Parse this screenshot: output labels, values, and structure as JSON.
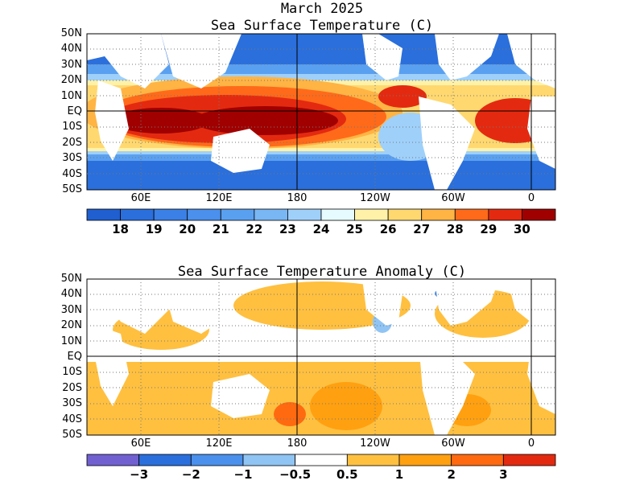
{
  "header": {
    "month_title": "March 2025"
  },
  "sst_panel": {
    "title": "Sea Surface Temperature (C)",
    "lat_labels": [
      "50N",
      "40N",
      "30N",
      "20N",
      "10N",
      "EQ",
      "10S",
      "20S",
      "30S",
      "40S",
      "50S"
    ],
    "lon_labels": [
      "60E",
      "120E",
      "180",
      "120W",
      "60W",
      "0"
    ],
    "colorbar": {
      "labels": [
        "18",
        "19",
        "20",
        "21",
        "22",
        "23",
        "24",
        "25",
        "26",
        "27",
        "28",
        "29",
        "30"
      ],
      "colors": [
        "#1f5fd0",
        "#2a6fdc",
        "#3a80e6",
        "#4a90ec",
        "#5aa0f0",
        "#78b6f4",
        "#9fd0fa",
        "#e6fbff",
        "#fff2a8",
        "#ffd870",
        "#ffb444",
        "#ff6a1a",
        "#e32a10",
        "#a00000"
      ]
    }
  },
  "anomaly_panel": {
    "title": "Sea Surface Temperature Anomaly (C)",
    "lat_labels": [
      "50N",
      "40N",
      "30N",
      "20N",
      "10N",
      "EQ",
      "10S",
      "20S",
      "30S",
      "40S",
      "50S"
    ],
    "lon_labels": [
      "60E",
      "120E",
      "180",
      "120W",
      "60W",
      "0"
    ],
    "colorbar": {
      "labels": [
        "−3",
        "−2",
        "−1",
        "−0.5",
        "0.5",
        "1",
        "2",
        "3"
      ],
      "colors": [
        "#7060d0",
        "#2a6fdc",
        "#4a90ec",
        "#8fc4f4",
        "#ffffff",
        "#ffc040",
        "#ffa010",
        "#ff6a10",
        "#e32a10"
      ]
    }
  }
}
